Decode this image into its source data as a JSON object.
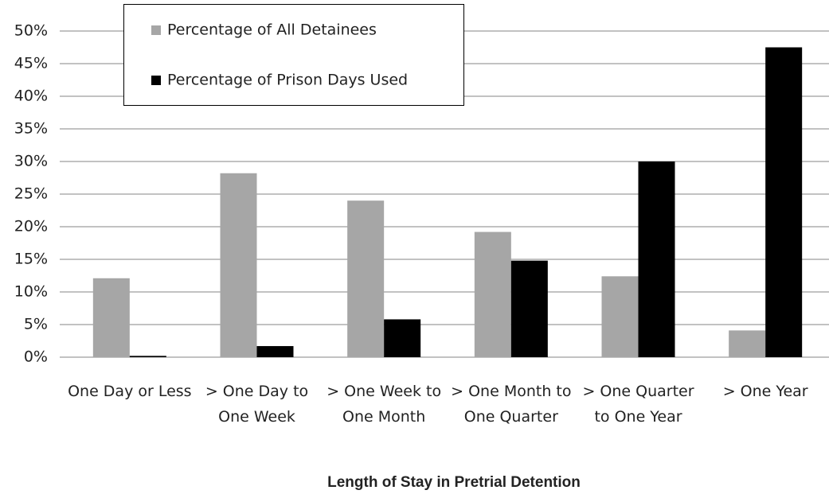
{
  "chart_data": {
    "type": "bar",
    "xlabel": "Length of Stay in Pretrial Detention",
    "categories": [
      "One Day or Less",
      "> One Day to One Week",
      "> One Week to One Month",
      "> One Month to One Quarter",
      "> One Quarter to One Year",
      "> One Year"
    ],
    "series": [
      {
        "name": "Percentage of All Detainees",
        "color": "#a6a6a6",
        "values": [
          12.1,
          28.2,
          24,
          19.2,
          12.4,
          4.1
        ]
      },
      {
        "name": "Percentage of Prison Days Used",
        "color": "#000000",
        "values": [
          0.2,
          1.7,
          5.8,
          14.8,
          30,
          47.5
        ]
      }
    ],
    "ylim": [
      0,
      50
    ],
    "yticks": [
      {
        "value": 0,
        "label": "0%"
      },
      {
        "value": 5,
        "label": "5%"
      },
      {
        "value": 10,
        "label": "10%"
      },
      {
        "value": 15,
        "label": "15%"
      },
      {
        "value": 20,
        "label": "20%"
      },
      {
        "value": 25,
        "label": "25%"
      },
      {
        "value": 30,
        "label": "30%"
      },
      {
        "value": 35,
        "label": "35%"
      },
      {
        "value": 40,
        "label": "40%"
      },
      {
        "value": 45,
        "label": "45%"
      },
      {
        "value": 50,
        "label": "50%"
      }
    ],
    "grid": true,
    "legend": "upper left"
  }
}
